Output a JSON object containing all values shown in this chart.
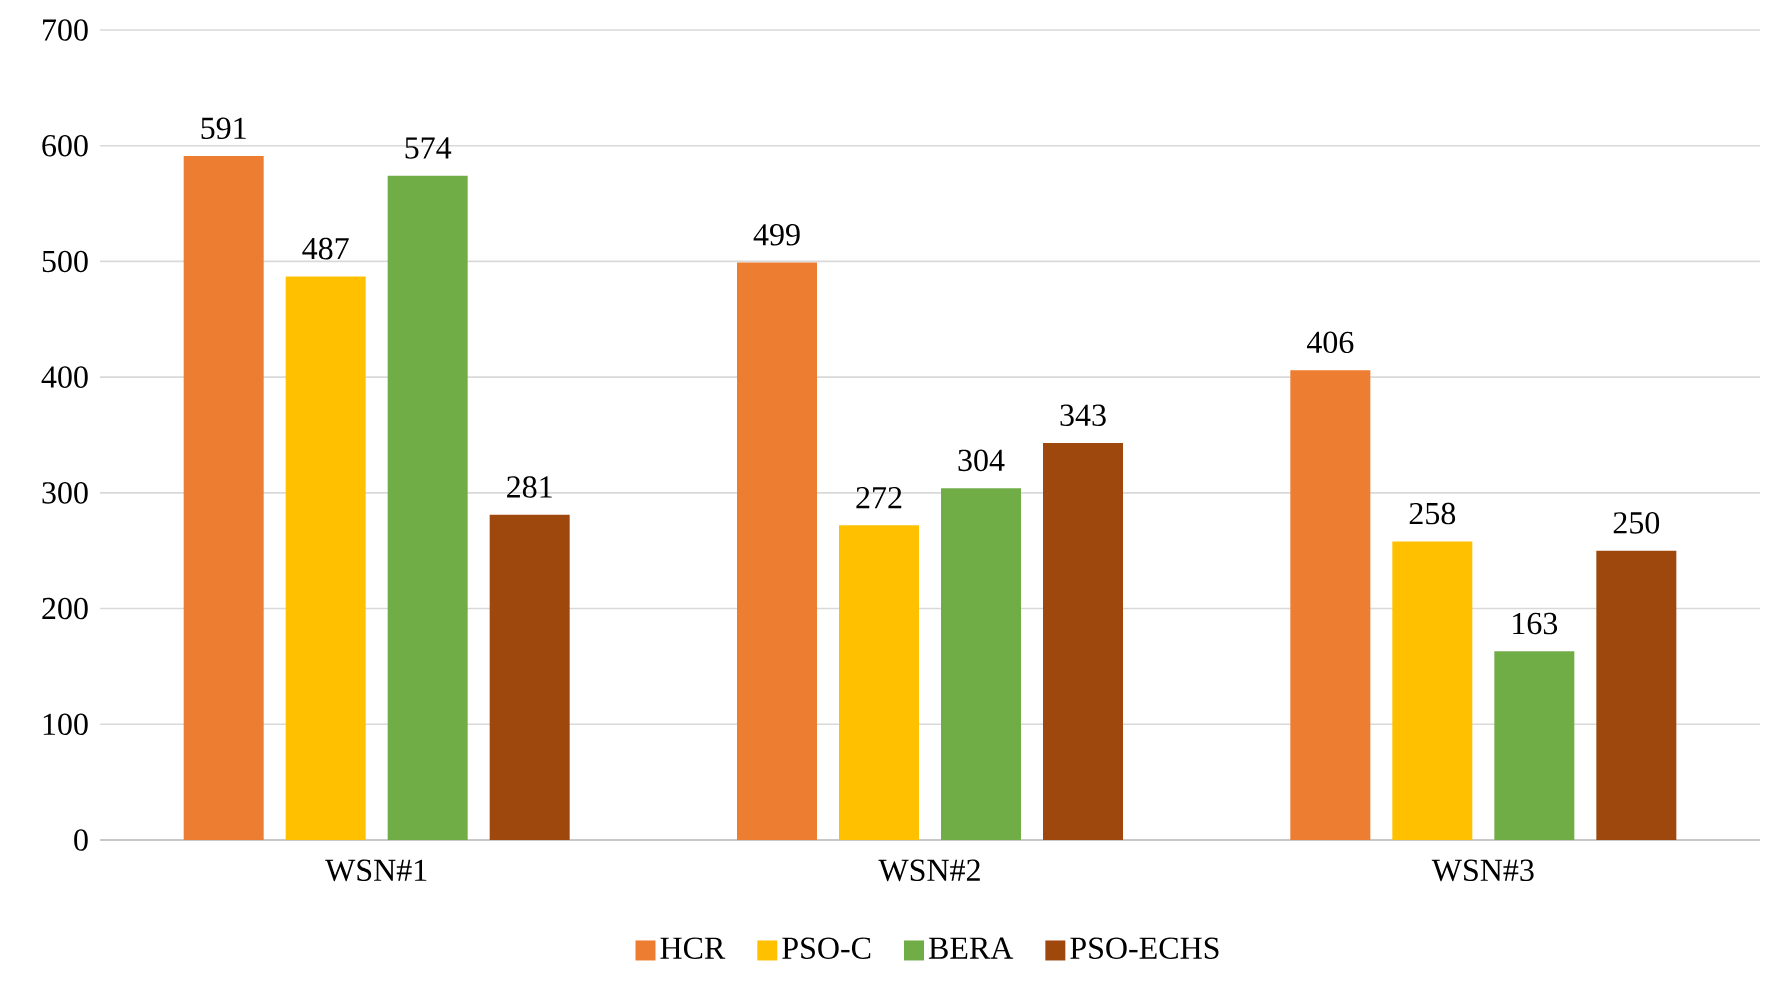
{
  "chart_data": {
    "type": "bar",
    "categories": [
      "WSN#1",
      "WSN#2",
      "WSN#3"
    ],
    "series": [
      {
        "name": "HCR",
        "color": "#ed7d31",
        "values": [
          591,
          499,
          406
        ]
      },
      {
        "name": "PSO-C",
        "color": "#ffc000",
        "values": [
          487,
          272,
          258
        ]
      },
      {
        "name": "BERA",
        "color": "#70ad47",
        "values": [
          574,
          304,
          163
        ]
      },
      {
        "name": "PSO-ECHS",
        "color": "#9e480e",
        "values": [
          281,
          343,
          250
        ]
      }
    ],
    "ylim": [
      0,
      700
    ],
    "yticks": [
      0,
      100,
      200,
      300,
      400,
      500,
      600,
      700
    ],
    "grid": "y",
    "legend": "bottom",
    "data_labels": true
  }
}
